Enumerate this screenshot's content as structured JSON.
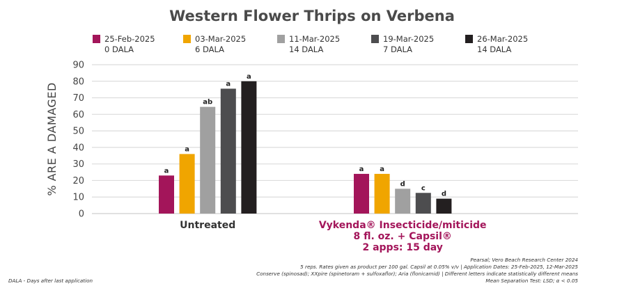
{
  "chart_data": {
    "type": "bar",
    "title": "Western Flower Thrips on Verbena",
    "ylabel": "% ARE A DAMAGED",
    "xlabel": "",
    "ylim": [
      0,
      90
    ],
    "yticks": [
      0,
      10,
      20,
      30,
      40,
      50,
      60,
      70,
      80,
      90
    ],
    "grid": true,
    "legend_position": "top",
    "categories": [
      {
        "lines": [
          "Untreated"
        ],
        "color": "#333333"
      },
      {
        "lines": [
          "Vykenda® Insecticide/miticide",
          "8 fl. oz. + Capsil®",
          "2 apps: 15 day"
        ],
        "color": "#a3155a"
      }
    ],
    "series": [
      {
        "name": "25-Feb-2025",
        "sub": "0 DALA",
        "color": "#a3155a",
        "values": [
          23,
          24
        ],
        "letters": [
          "a",
          "a"
        ]
      },
      {
        "name": "03-Mar-2025",
        "sub": "6 DALA",
        "color": "#f0a500",
        "values": [
          36,
          24
        ],
        "letters": [
          "a",
          "a"
        ]
      },
      {
        "name": "11-Mar-2025",
        "sub": "14 DALA",
        "color": "#a0a0a0",
        "values": [
          64.5,
          15
        ],
        "letters": [
          "ab",
          "d"
        ]
      },
      {
        "name": "19-Mar-2025",
        "sub": "7 DALA",
        "color": "#4d4d4f",
        "values": [
          75.5,
          12.5
        ],
        "letters": [
          "a",
          "c"
        ]
      },
      {
        "name": "26-Mar-2025",
        "sub": "14 DALA",
        "color": "#231f20",
        "values": [
          80,
          9
        ],
        "letters": [
          "a",
          "d"
        ]
      }
    ],
    "footnotes": [
      "Pearsal; Vero Beach Research Center 2024",
      "5 reps. Rates given as product per 100 gal. Capsil at 0.05% v/v   |   Application Dates:  25-Feb-2025, 12-Mar-2025",
      "Conserve (spinosad); XXpire (spinetoram + sulfoxaflor); Aria (flonicamid)   |   Different letters indicate statistically different means",
      "Mean Separation Test: LSD; α  < 0.05"
    ],
    "left_note": "DALA - Days after last application"
  }
}
